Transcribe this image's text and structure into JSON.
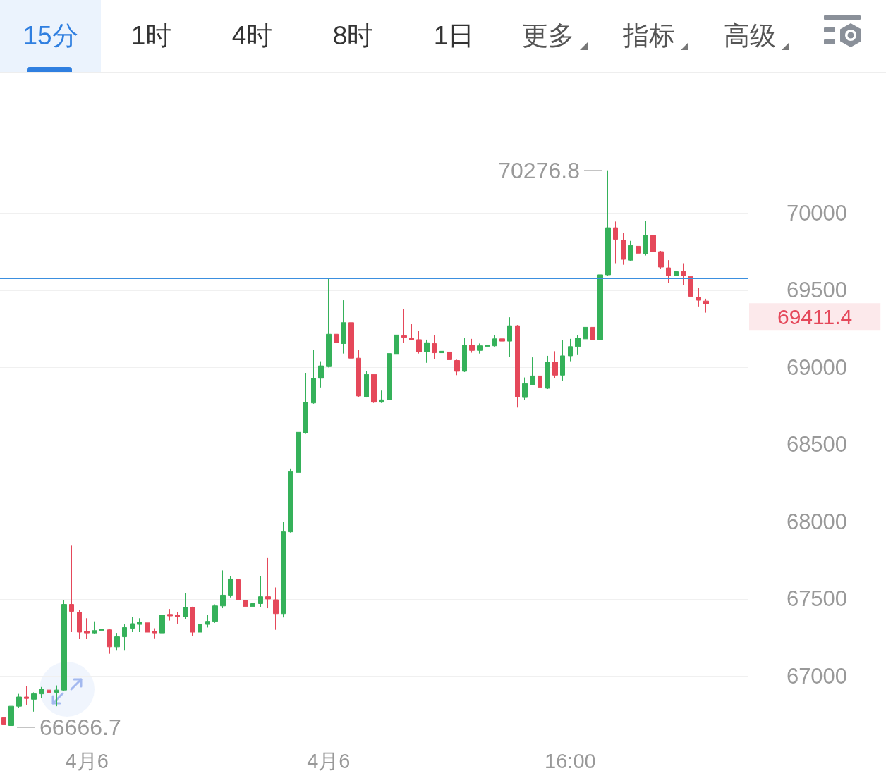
{
  "chart_data": [
    {
      "type": "other",
      "annotations": [
        "15分",
        "1时",
        "4时",
        "8时",
        "1日",
        "更多",
        "指标",
        "高级"
      ]
    },
    {
      "type": "candlestick",
      "categories": [
        null,
        null,
        null,
        null,
        null,
        null,
        null,
        null,
        null,
        null,
        null,
        "4月6",
        null,
        null,
        null,
        null,
        null,
        null,
        null,
        null,
        null,
        null,
        null,
        null,
        null,
        null,
        null,
        null,
        null,
        null,
        null,
        null,
        null,
        null,
        null,
        null,
        null,
        null,
        null,
        null,
        null,
        null,
        null,
        "4月6",
        null,
        null,
        null,
        null,
        null,
        null,
        null,
        null,
        null,
        null,
        null,
        null,
        null,
        null,
        null,
        null,
        null,
        null,
        null,
        null,
        null,
        null,
        null,
        null,
        null,
        null,
        null,
        null,
        null,
        null,
        null,
        "16:00",
        null,
        null,
        null,
        null,
        null,
        null,
        null,
        null,
        null,
        null,
        null,
        null,
        null,
        null,
        null,
        null,
        null,
        null,
        null,
        null,
        null,
        null,
        null
      ],
      "ohlc": [
        [
          66730,
          66740,
          66675,
          66685
        ],
        [
          66680,
          66820,
          66666.7,
          66805
        ],
        [
          66805,
          66885,
          66795,
          66865
        ],
        [
          66865,
          66935,
          66815,
          66855
        ],
        [
          66850,
          66895,
          66770,
          66885
        ],
        [
          66885,
          66930,
          66860,
          66915
        ],
        [
          66910,
          66920,
          66885,
          66895
        ],
        [
          66895,
          66940,
          66805,
          66910
        ],
        [
          66910,
          67495,
          66905,
          67465
        ],
        [
          67465,
          67845,
          67285,
          67420
        ],
        [
          67415,
          67430,
          67240,
          67285
        ],
        [
          67290,
          67375,
          67240,
          67280
        ],
        [
          67280,
          67355,
          67275,
          67295
        ],
        [
          67295,
          67385,
          67240,
          67305
        ],
        [
          67300,
          67305,
          67145,
          67190
        ],
        [
          67190,
          67280,
          67165,
          67255
        ],
        [
          67255,
          67335,
          67165,
          67315
        ],
        [
          67310,
          67385,
          67285,
          67340
        ],
        [
          67335,
          67375,
          67285,
          67350
        ],
        [
          67345,
          67350,
          67250,
          67285
        ],
        [
          67290,
          67310,
          67245,
          67280
        ],
        [
          67280,
          67430,
          67275,
          67395
        ],
        [
          67400,
          67435,
          67360,
          67390
        ],
        [
          67395,
          67415,
          67340,
          67385
        ],
        [
          67385,
          67540,
          67370,
          67445
        ],
        [
          67445,
          67450,
          67260,
          67285
        ],
        [
          67285,
          67340,
          67255,
          67335
        ],
        [
          67335,
          67395,
          67315,
          67355
        ],
        [
          67355,
          67465,
          67345,
          67455
        ],
        [
          67455,
          67685,
          67440,
          67525
        ],
        [
          67525,
          67650,
          67510,
          67630
        ],
        [
          67625,
          67630,
          67385,
          67495
        ],
        [
          67490,
          67510,
          67385,
          67450
        ],
        [
          67450,
          67500,
          67380,
          67470
        ],
        [
          67470,
          67650,
          67445,
          67515
        ],
        [
          67515,
          67765,
          67440,
          67500
        ],
        [
          67495,
          67575,
          67300,
          67405
        ],
        [
          67405,
          68000,
          67380,
          67935
        ],
        [
          67935,
          68345,
          67930,
          68325
        ],
        [
          68320,
          68585,
          68240,
          68580
        ],
        [
          68575,
          68965,
          68570,
          68775
        ],
        [
          68770,
          69115,
          68765,
          68930
        ],
        [
          68930,
          69040,
          68870,
          69010
        ],
        [
          69005,
          69580,
          69000,
          69215
        ],
        [
          69215,
          69335,
          69040,
          69160
        ],
        [
          69155,
          69435,
          69090,
          69290
        ],
        [
          69290,
          69320,
          69055,
          69060
        ],
        [
          69060,
          69115,
          68810,
          68815
        ],
        [
          68810,
          68975,
          68805,
          68955
        ],
        [
          68955,
          68960,
          68770,
          68775
        ],
        [
          68775,
          68850,
          68770,
          68790
        ],
        [
          68790,
          69310,
          68750,
          69090
        ],
        [
          69085,
          69290,
          69070,
          69210
        ],
        [
          69205,
          69380,
          69160,
          69195
        ],
        [
          69190,
          69280,
          69175,
          69180
        ],
        [
          69180,
          69235,
          69090,
          69100
        ],
        [
          69100,
          69180,
          69030,
          69160
        ],
        [
          69155,
          69210,
          69055,
          69095
        ],
        [
          69095,
          69125,
          69035,
          69105
        ],
        [
          69100,
          69175,
          68975,
          69050
        ],
        [
          69045,
          69050,
          68950,
          68975
        ],
        [
          68975,
          69190,
          68970,
          69145
        ],
        [
          69145,
          69185,
          69095,
          69110
        ],
        [
          69110,
          69155,
          69090,
          69140
        ],
        [
          69135,
          69195,
          69060,
          69145
        ],
        [
          69140,
          69210,
          69135,
          69185
        ],
        [
          69185,
          69210,
          69120,
          69170
        ],
        [
          69170,
          69325,
          69070,
          69270
        ],
        [
          69270,
          69275,
          68740,
          68810
        ],
        [
          68805,
          68935,
          68790,
          68895
        ],
        [
          68890,
          69065,
          68885,
          68945
        ],
        [
          68945,
          68960,
          68785,
          68870
        ],
        [
          68865,
          69075,
          68860,
          69035
        ],
        [
          69035,
          69105,
          68930,
          68950
        ],
        [
          68950,
          69175,
          68915,
          69075
        ],
        [
          69075,
          69185,
          69040,
          69135
        ],
        [
          69135,
          69210,
          69080,
          69190
        ],
        [
          69185,
          69315,
          69165,
          69260
        ],
        [
          69260,
          69270,
          69175,
          69180
        ],
        [
          69180,
          69760,
          69170,
          69600
        ],
        [
          69600,
          70276.8,
          69595,
          69905
        ],
        [
          69905,
          69945,
          69675,
          69830
        ],
        [
          69825,
          69870,
          69665,
          69700
        ],
        [
          69695,
          69820,
          69690,
          69790
        ],
        [
          69785,
          69840,
          69710,
          69740
        ],
        [
          69735,
          69950,
          69725,
          69855
        ],
        [
          69855,
          69860,
          69680,
          69750
        ],
        [
          69750,
          69755,
          69640,
          69650
        ],
        [
          69645,
          69695,
          69545,
          69595
        ],
        [
          69595,
          69685,
          69540,
          69620
        ],
        [
          69620,
          69675,
          69535,
          69595
        ],
        [
          69590,
          69615,
          69430,
          69460
        ],
        [
          69455,
          69515,
          69395,
          69435
        ],
        [
          69430,
          69445,
          69355,
          69411.4
        ],
        null,
        null,
        null,
        null,
        null
      ],
      "colors": [
        "#e5485a",
        "#35b15a",
        "#35b15a",
        "#e5485a",
        "#35b15a",
        "#35b15a",
        "#e5485a",
        "#35b15a",
        "#35b15a",
        "#e5485a",
        "#e5485a",
        "#e5485a",
        "#35b15a",
        "#35b15a",
        "#e5485a",
        "#35b15a",
        "#35b15a",
        "#35b15a",
        "#35b15a",
        "#e5485a",
        "#e5485a",
        "#35b15a",
        "#e5485a",
        "#e5485a",
        "#35b15a",
        "#e5485a",
        "#35b15a",
        "#35b15a",
        "#35b15a",
        "#35b15a",
        "#35b15a",
        "#e5485a",
        "#e5485a",
        "#35b15a",
        "#35b15a",
        "#e5485a",
        "#e5485a",
        "#35b15a",
        "#35b15a",
        "#35b15a",
        "#35b15a",
        "#35b15a",
        "#35b15a",
        "#35b15a",
        "#e5485a",
        "#35b15a",
        "#e5485a",
        "#e5485a",
        "#35b15a",
        "#e5485a",
        "#35b15a",
        "#35b15a",
        "#35b15a",
        "#e5485a",
        "#e5485a",
        "#e5485a",
        "#35b15a",
        "#e5485a",
        "#35b15a",
        "#e5485a",
        "#e5485a",
        "#35b15a",
        "#e5485a",
        "#35b15a",
        "#35b15a",
        "#35b15a",
        "#e5485a",
        "#35b15a",
        "#e5485a",
        "#35b15a",
        "#35b15a",
        "#e5485a",
        "#35b15a",
        "#e5485a",
        "#35b15a",
        "#35b15a",
        "#35b15a",
        "#35b15a",
        "#e5485a",
        "#35b15a",
        "#35b15a",
        "#e5485a",
        "#e5485a",
        "#35b15a",
        "#e5485a",
        "#35b15a",
        "#e5485a",
        "#e5485a",
        "#e5485a",
        "#35b15a",
        "#e5485a",
        "#e5485a",
        "#e5485a",
        "#e5485a",
        null,
        null,
        null,
        null,
        null
      ],
      "ylim": [
        66550,
        70910
      ],
      "yticks": [
        67000,
        67500,
        68000,
        68500,
        69000,
        69500,
        70000
      ],
      "grid": "y",
      "ref_lines": [
        {
          "axis": "y",
          "value": 69575,
          "color": "#3b8fdf"
        },
        {
          "axis": "y",
          "value": 67460,
          "color": "#3b8fdf"
        },
        {
          "axis": "y",
          "value": 69411.4,
          "label": "69411.4",
          "color": "#b8b8b8",
          "line_style": "dashed"
        }
      ],
      "annotations": [
        "70276.8",
        "66666.7"
      ]
    }
  ]
}
